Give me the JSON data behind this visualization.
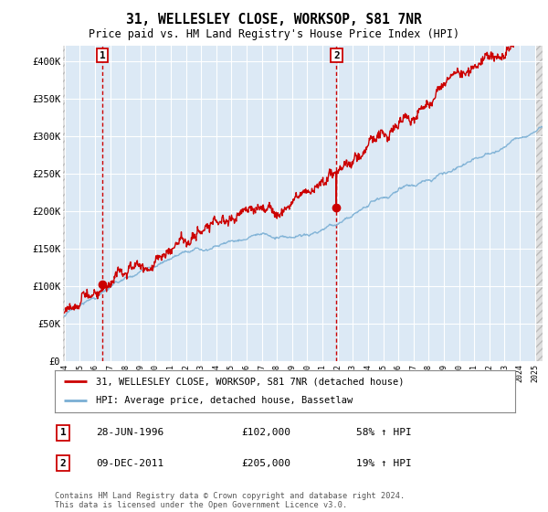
{
  "title": "31, WELLESLEY CLOSE, WORKSOP, S81 7NR",
  "subtitle": "Price paid vs. HM Land Registry's House Price Index (HPI)",
  "property_label": "31, WELLESLEY CLOSE, WORKSOP, S81 7NR (detached house)",
  "hpi_label": "HPI: Average price, detached house, Bassetlaw",
  "sale1_date": "28-JUN-1996",
  "sale1_price": 102000,
  "sale1_hpi": "58% ↑ HPI",
  "sale2_date": "09-DEC-2011",
  "sale2_price": 205000,
  "sale2_hpi": "19% ↑ HPI",
  "footer": "Contains HM Land Registry data © Crown copyright and database right 2024.\nThis data is licensed under the Open Government Licence v3.0.",
  "ylim": [
    0,
    420000
  ],
  "xlim_left": 1994.0,
  "xlim_right": 2025.5,
  "bg_color": "#dce9f5",
  "property_color": "#cc0000",
  "hpi_color": "#7aafd4",
  "vline_color": "#cc0000",
  "annotation_box_color": "#cc0000",
  "sale1_year": 1996.5,
  "sale2_year": 2011.92,
  "yticks": [
    0,
    50000,
    100000,
    150000,
    200000,
    250000,
    300000,
    350000,
    400000
  ],
  "ytick_labels": [
    "£0",
    "£50K",
    "£100K",
    "£150K",
    "£200K",
    "£250K",
    "£300K",
    "£350K",
    "£400K"
  ]
}
